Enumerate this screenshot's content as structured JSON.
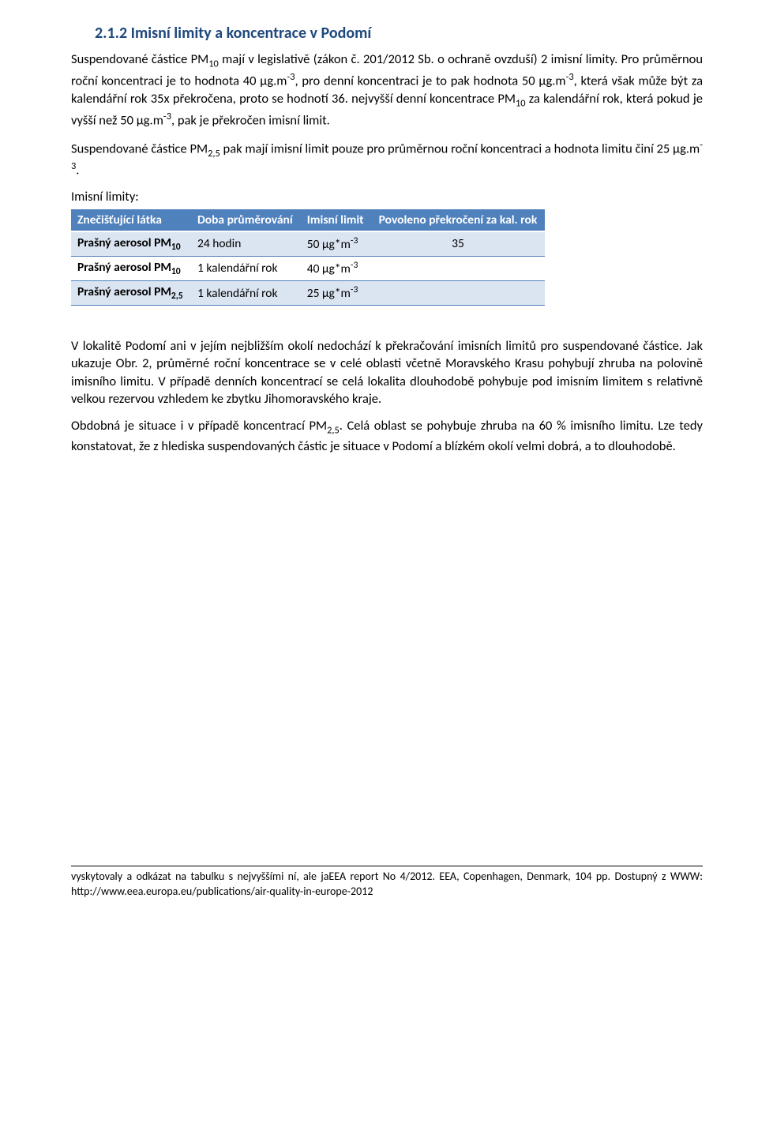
{
  "heading": "2.1.2  Imisní limity a koncentrace v Podomí",
  "p1_html": "Suspendované částice PM<sub>10</sub> mají v legislativě (zákon č. 201/2012 Sb. o ochraně ovzduší) 2 imisní limity. Pro průměrnou roční koncentraci je to hodnota 40 µg.m<sup>-3</sup>, pro denní koncentraci je to pak hodnota 50 µg.m<sup>-3</sup>, která však může být za kalendářní rok 35x překročena, proto se hodnotí 36. nejvyšší denní koncentrace PM<sub>10</sub> za kalendářní rok, která pokud je vyšší než 50 µg.m<sup>-3</sup>, pak je překročen imisní limit.",
  "p2_html": "Suspendované částice PM<sub>2,5</sub> pak mají imisní limit pouze pro průměrnou roční koncentraci a hodnota limitu činí 25 µg.m<sup>-3</sup>.",
  "limits_label": "Imisní limity:",
  "table": {
    "header_bg": "#4f81bd",
    "header_fg": "#ffffff",
    "row_alt_bg": "#dbe5f1",
    "border_color": "#4f81bd",
    "columns": [
      "Znečišťující látka",
      "Doba průměrování",
      "Imisní limit",
      "Povoleno překročení za kal. rok"
    ],
    "rows": [
      {
        "latka_html": "Prašný aerosol PM<sub>10</sub>",
        "doba": "24 hodin",
        "limit_html": "50 µg*m<sup>-3</sup>",
        "povoleno": "35"
      },
      {
        "latka_html": "Prašný aerosol PM<sub>10</sub>",
        "doba": "1 kalendářní rok",
        "limit_html": "40 µg*m<sup>-3</sup>",
        "povoleno": ""
      },
      {
        "latka_html": "Prašný aerosol PM<sub>2,5</sub>",
        "doba": "1 kalendářní rok",
        "limit_html": "25 µg*m<sup>-3</sup>",
        "povoleno": ""
      }
    ]
  },
  "p3": "V lokalitě Podomí ani v jejím nejbližším okolí nedochází k překračování imisních limitů pro suspendované částice. Jak ukazuje Obr. 2, průměrné roční koncentrace se v celé oblasti včetně Moravského Krasu pohybují zhruba na polovině imisního limitu. V případě denních koncentrací se celá lokalita dlouhodobě pohybuje pod imisním limitem s relativně velkou rezervou vzhledem ke zbytku Jihomoravského kraje.",
  "p4_html": "Obdobná je situace i v případě koncentrací PM<sub>2,5</sub>. Celá oblast se pohybuje zhruba na 60 % imisního limitu. Lze tedy konstatovat, že z hlediska suspendovaných částic je situace v Podomí a blízkém okolí velmi dobrá, a to dlouhodobě.",
  "footer": "vyskytovaly a odkázat na tabulku s nejvyššími ní, ale jaEEA report No 4/2012. EEA, Copenhagen, Denmark, 104 pp. Dostupný z WWW: http://www.eea.europa.eu/publications/air-quality-in-europe-2012"
}
